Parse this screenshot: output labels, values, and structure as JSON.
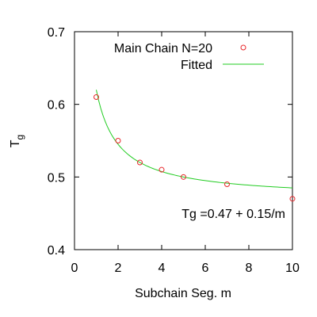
{
  "chart_data": {
    "type": "scatter",
    "xlabel": "Subchain Seg. m",
    "ylabel": "T",
    "ylabel_subscript": "g",
    "xlim": [
      0,
      10
    ],
    "ylim": [
      0.4,
      0.7
    ],
    "xticks": [
      0,
      2,
      4,
      6,
      8,
      10
    ],
    "yticks": [
      0.4,
      0.5,
      0.6,
      0.7
    ],
    "grid": false,
    "legend_position": "top-right",
    "series": [
      {
        "name": "Main Chain N=20",
        "kind": "points",
        "marker": "open-circle",
        "color": "#e8262a",
        "x": [
          1,
          2,
          3,
          4,
          5,
          7,
          10
        ],
        "y": [
          0.61,
          0.55,
          0.52,
          0.51,
          0.5,
          0.49,
          0.47
        ]
      },
      {
        "name": "Fitted",
        "kind": "line",
        "color": "#22cc22",
        "intercept": 0.47,
        "coefficient": 0.15,
        "x_range": [
          1,
          10
        ]
      }
    ],
    "annotation": "Tg =0.47 + 0.15/m"
  }
}
